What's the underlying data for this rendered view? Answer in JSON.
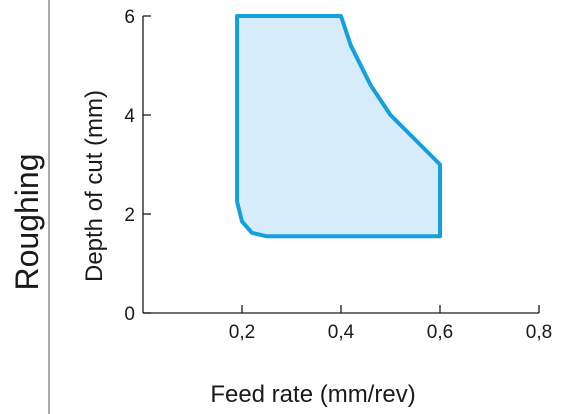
{
  "chart_data": {
    "type": "area",
    "section_label": "Roughing",
    "xlabel": "Feed rate (mm/rev)",
    "ylabel": "Depth of cut (mm)",
    "xlim": [
      0,
      0.8
    ],
    "ylim": [
      0,
      6
    ],
    "x_ticks": [
      {
        "value": 0.2,
        "label": "0,2"
      },
      {
        "value": 0.4,
        "label": "0,4"
      },
      {
        "value": 0.6,
        "label": "0,6"
      },
      {
        "value": 0.8,
        "label": "0,8"
      }
    ],
    "y_ticks": [
      {
        "value": 0,
        "label": "0"
      },
      {
        "value": 2,
        "label": "2"
      },
      {
        "value": 4,
        "label": "4"
      },
      {
        "value": 6,
        "label": "6"
      }
    ],
    "region": {
      "name": "",
      "points": [
        [
          0.19,
          6.0
        ],
        [
          0.4,
          6.0
        ],
        [
          0.42,
          5.4
        ],
        [
          0.46,
          4.6
        ],
        [
          0.5,
          4.0
        ],
        [
          0.55,
          3.5
        ],
        [
          0.6,
          3.0
        ],
        [
          0.6,
          1.55
        ],
        [
          0.25,
          1.55
        ],
        [
          0.22,
          1.62
        ],
        [
          0.2,
          1.85
        ],
        [
          0.19,
          2.25
        ],
        [
          0.19,
          6.0
        ]
      ]
    },
    "grid": false,
    "colors": {
      "region_fill": "#d6ecfa",
      "region_stroke": "#14a0dc",
      "axis": "#1a1a1a",
      "text": "#1a1a1a",
      "divider": "#555555"
    }
  }
}
